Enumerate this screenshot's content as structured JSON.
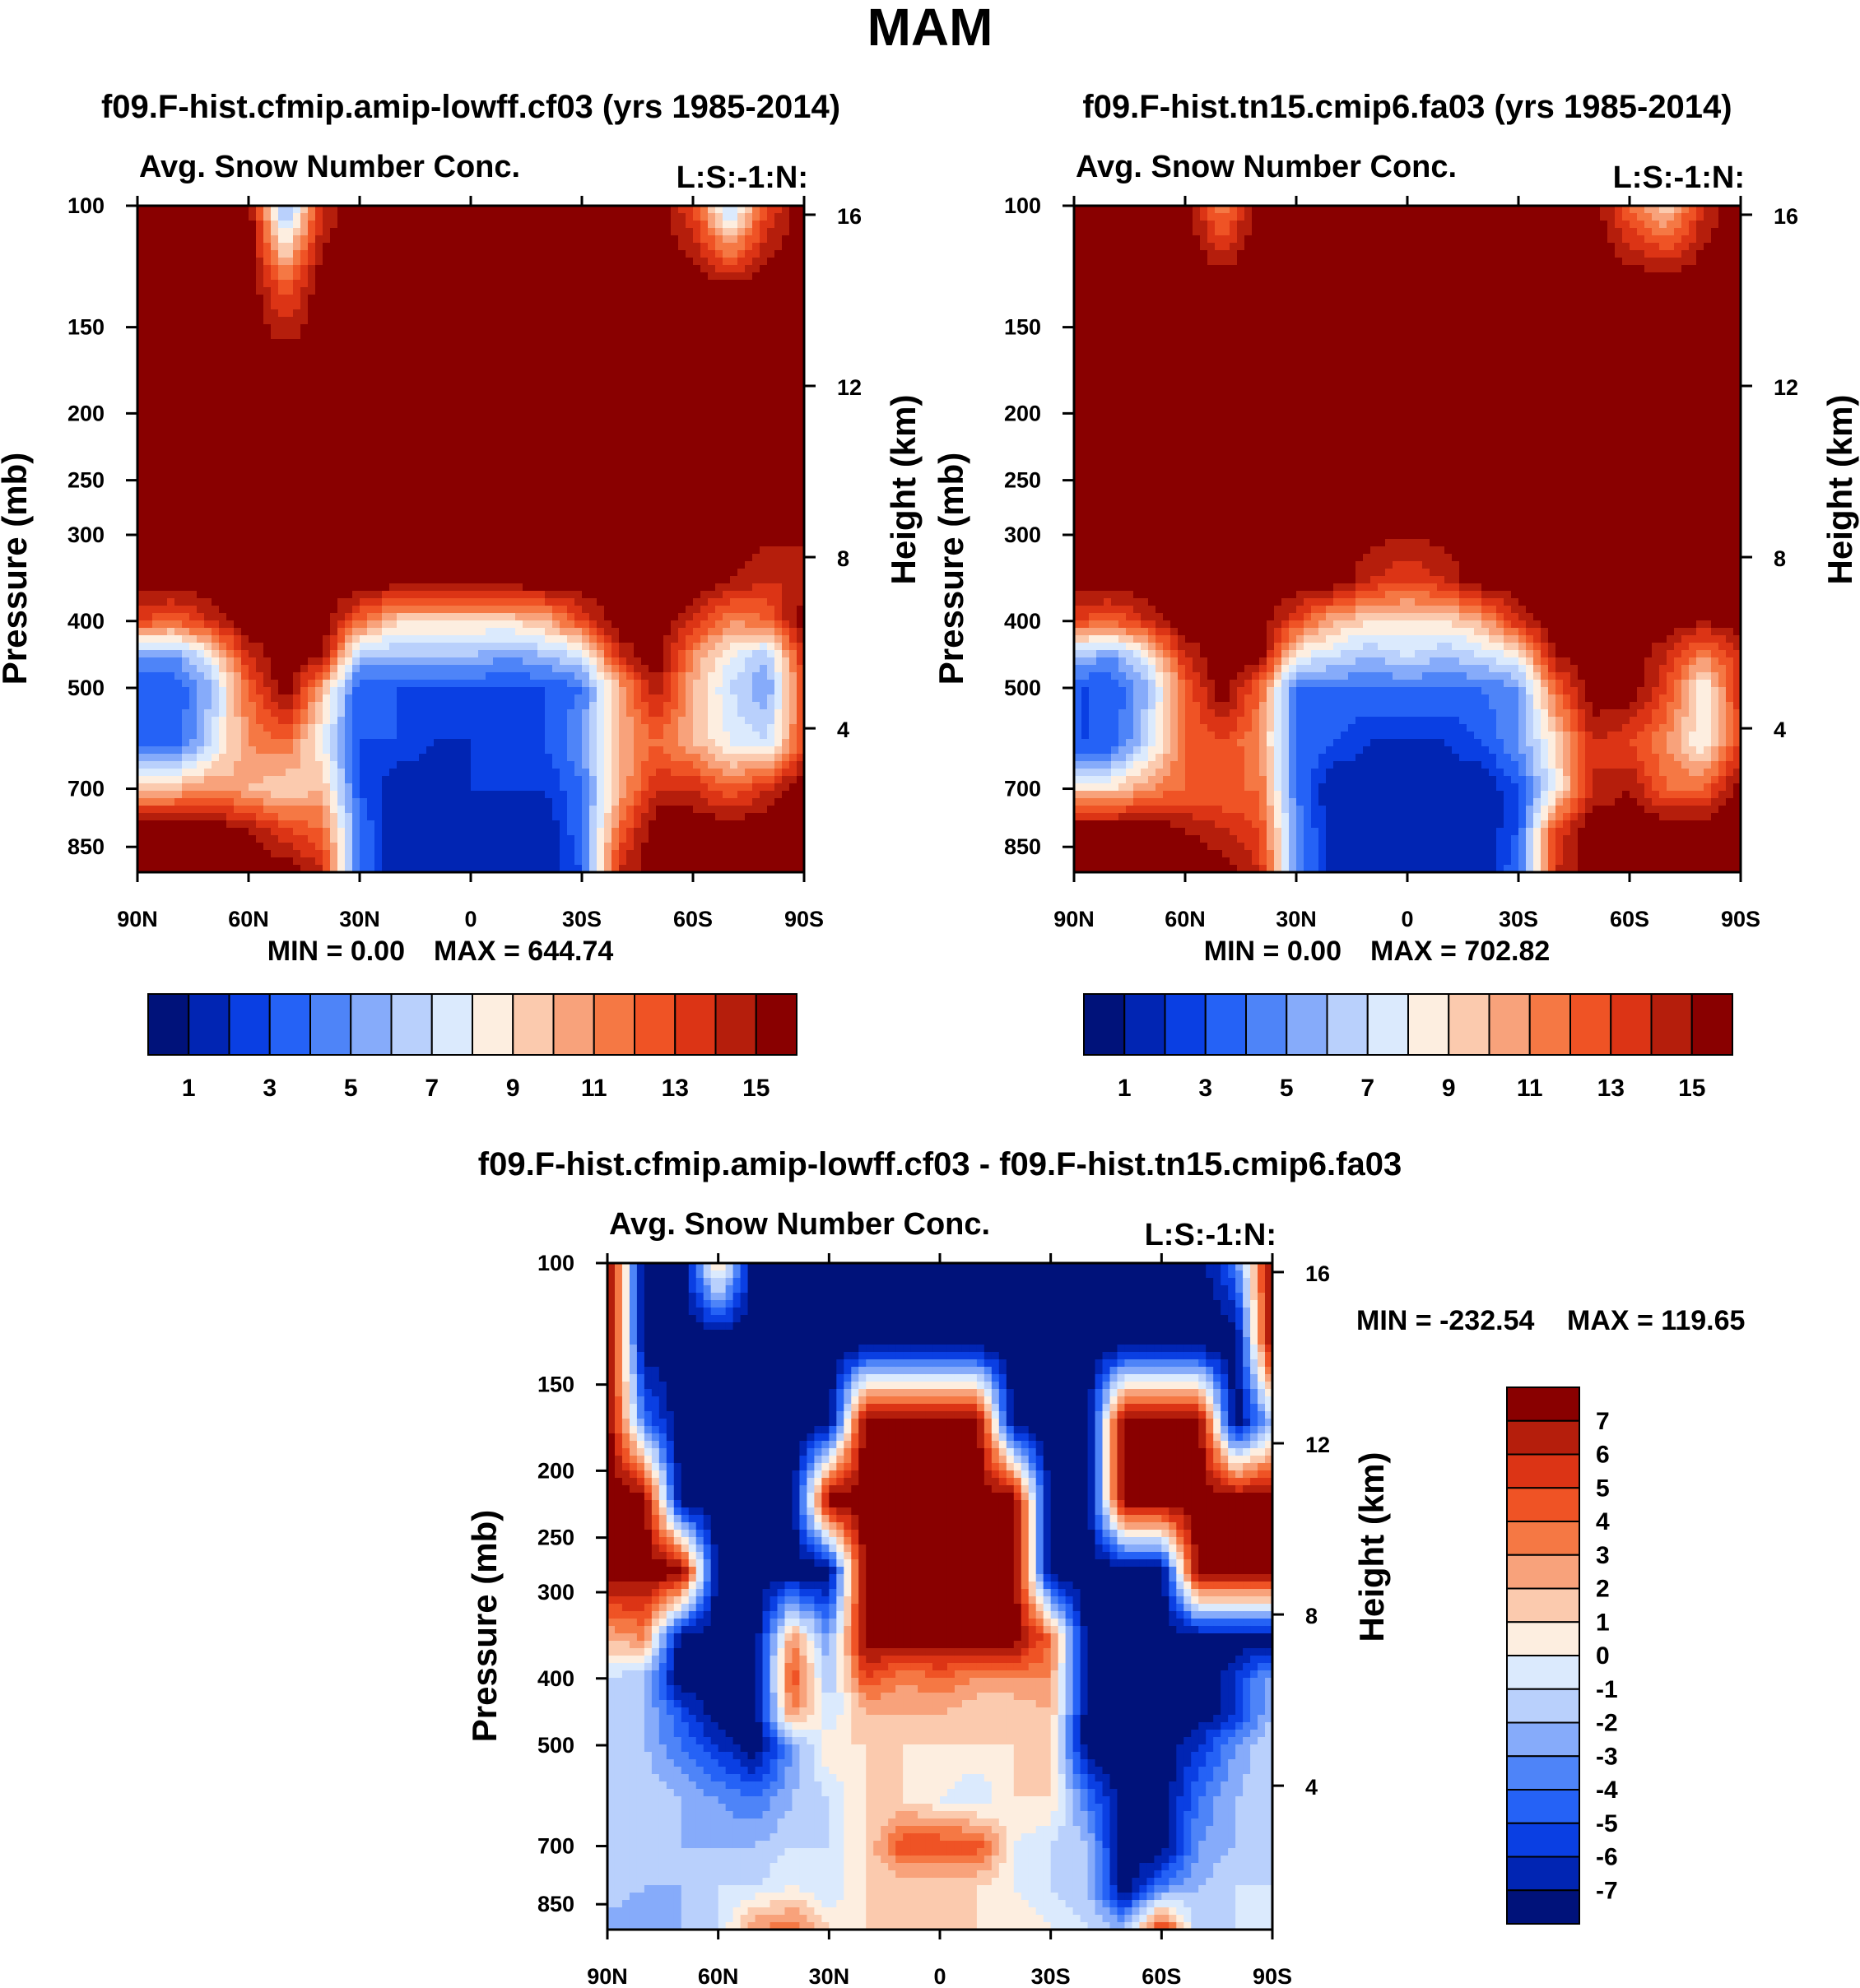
{
  "figure": {
    "title": "MAM"
  },
  "colormaps": {
    "abs": [
      "#00127a",
      "#0125b3",
      "#0a3fe3",
      "#2562f6",
      "#4e84f8",
      "#86abfa",
      "#b9d0fc",
      "#dbeafd",
      "#fdeee0",
      "#fbcaae",
      "#f8a27b",
      "#f57844",
      "#ef5325",
      "#dc3415",
      "#b51e0c",
      "#890000"
    ],
    "diff": [
      "#00127a",
      "#0125b3",
      "#0a3fe3",
      "#2562f6",
      "#4e84f8",
      "#86abfa",
      "#b9d0fc",
      "#dbeafd",
      "#fdeee0",
      "#fbcaae",
      "#f8a27b",
      "#f57844",
      "#ef5325",
      "#dc3415",
      "#b51e0c",
      "#890000"
    ]
  },
  "chart_data": [
    {
      "type": "heatmap",
      "panel_title": "f09.F-hist.cfmip.amip-lowff.cf03 (yrs 1985-2014)",
      "left_header": "Avg. Snow Number Conc.",
      "right_header": "L:S:-1:N:",
      "xlabel": "",
      "ylabel": "Pressure (mb)",
      "y2label": "Height (km)",
      "x_ticks": [
        "90N",
        "60N",
        "30N",
        "0",
        "30S",
        "60S",
        "90S"
      ],
      "y_ticks": [
        "100",
        "150",
        "200",
        "250",
        "300",
        "400",
        "500",
        "700",
        "850"
      ],
      "y_tick_values": [
        100,
        150,
        200,
        250,
        300,
        400,
        500,
        700,
        850
      ],
      "y2_ticks": [
        "16",
        "12",
        "8",
        "4"
      ],
      "y2_tick_values": [
        16,
        12,
        8,
        4
      ],
      "xlim": [
        90,
        -90
      ],
      "ylim_mb": [
        100,
        925
      ],
      "min_text": "MIN =    0.00",
      "max_text": "MAX = 644.74",
      "colorbar_labels": [
        "1",
        "3",
        "5",
        "7",
        "9",
        "11",
        "13",
        "15"
      ],
      "levels": [
        1,
        2,
        3,
        4,
        5,
        6,
        7,
        8,
        9,
        10,
        11,
        12,
        13,
        14,
        15
      ],
      "field": {
        "lat": [
          90,
          80,
          70,
          60,
          50,
          40,
          30,
          20,
          10,
          0,
          -10,
          -20,
          -30,
          -40,
          -50,
          -60,
          -70,
          -80,
          -90
        ],
        "lev": [
          100,
          130,
          170,
          220,
          280,
          350,
          400,
          450,
          500,
          600,
          700,
          800,
          925
        ],
        "values": [
          [
            16,
            16,
            16,
            16,
            5,
            14,
            16,
            16,
            16,
            16,
            16,
            16,
            16,
            16,
            16,
            13,
            6,
            13,
            16
          ],
          [
            16,
            16,
            16,
            16,
            12,
            16,
            16,
            16,
            16,
            16,
            16,
            16,
            16,
            16,
            16,
            16,
            15,
            16,
            16
          ],
          [
            16,
            16,
            16,
            16,
            16,
            16,
            16,
            16,
            16,
            16,
            16,
            16,
            16,
            16,
            16,
            16,
            16,
            16,
            16
          ],
          [
            16,
            16,
            16,
            16,
            16,
            16,
            16,
            16,
            16,
            16,
            16,
            16,
            16,
            16,
            16,
            16,
            16,
            16,
            16
          ],
          [
            16,
            16,
            16,
            16,
            16,
            16,
            16,
            16,
            16,
            16,
            16,
            16,
            16,
            16,
            16,
            16,
            16,
            16,
            16
          ],
          [
            16,
            16,
            16,
            16,
            16,
            16,
            16,
            16,
            16,
            16,
            16,
            16,
            16,
            16,
            16,
            16,
            15,
            14,
            14
          ],
          [
            13,
            12,
            14,
            16,
            16,
            16,
            12,
            9,
            9,
            9,
            9,
            10,
            13,
            16,
            16,
            14,
            11,
            12,
            16
          ],
          [
            5,
            5,
            8,
            14,
            16,
            15,
            6,
            6,
            6,
            6,
            5,
            6,
            7,
            14,
            16,
            11,
            8,
            6,
            14
          ],
          [
            3,
            3,
            6,
            12,
            16,
            10,
            3,
            3,
            3,
            3,
            3,
            3,
            4,
            10,
            15,
            10,
            7,
            5,
            13
          ],
          [
            4,
            3,
            7,
            11,
            12,
            8,
            3,
            3,
            2,
            2,
            2,
            3,
            5,
            10,
            12,
            10,
            8,
            7,
            13
          ],
          [
            10,
            10,
            11,
            10,
            9,
            10,
            3,
            1,
            1,
            2,
            2,
            2,
            4,
            10,
            14,
            14,
            12,
            14,
            16
          ],
          [
            16,
            16,
            16,
            15,
            13,
            12,
            4,
            1,
            1,
            1,
            1,
            1,
            4,
            12,
            16,
            16,
            16,
            16,
            16
          ],
          [
            16,
            16,
            16,
            16,
            16,
            14,
            4,
            1,
            1,
            1,
            1,
            1,
            3,
            14,
            16,
            16,
            16,
            16,
            16
          ]
        ]
      }
    },
    {
      "type": "heatmap",
      "panel_title": "f09.F-hist.tn15.cmip6.fa03 (yrs 1985-2014)",
      "left_header": "Avg. Snow Number Conc.",
      "right_header": "L:S:-1:N:",
      "xlabel": "",
      "ylabel": "Pressure (mb)",
      "y2label": "Height (km)",
      "x_ticks": [
        "90N",
        "60N",
        "30N",
        "0",
        "30S",
        "60S",
        "90S"
      ],
      "y_ticks": [
        "100",
        "150",
        "200",
        "250",
        "300",
        "400",
        "500",
        "700",
        "850"
      ],
      "y_tick_values": [
        100,
        150,
        200,
        250,
        300,
        400,
        500,
        700,
        850
      ],
      "y2_ticks": [
        "16",
        "12",
        "8",
        "4"
      ],
      "y2_tick_values": [
        16,
        12,
        8,
        4
      ],
      "xlim": [
        90,
        -90
      ],
      "ylim_mb": [
        100,
        925
      ],
      "min_text": "MIN =    0.00",
      "max_text": "MAX = 702.82",
      "colorbar_labels": [
        "1",
        "3",
        "5",
        "7",
        "9",
        "11",
        "13",
        "15"
      ],
      "levels": [
        1,
        2,
        3,
        4,
        5,
        6,
        7,
        8,
        9,
        10,
        11,
        12,
        13,
        14,
        15
      ],
      "field": {
        "lat": [
          90,
          80,
          70,
          60,
          50,
          40,
          30,
          20,
          10,
          0,
          -10,
          -20,
          -30,
          -40,
          -50,
          -60,
          -70,
          -80,
          -90
        ],
        "lev": [
          100,
          130,
          170,
          220,
          280,
          350,
          400,
          450,
          500,
          600,
          700,
          800,
          925
        ],
        "values": [
          [
            16,
            16,
            16,
            16,
            11,
            16,
            16,
            16,
            16,
            16,
            16,
            16,
            16,
            16,
            16,
            12,
            9,
            14,
            16
          ],
          [
            16,
            16,
            16,
            16,
            16,
            16,
            16,
            16,
            16,
            16,
            16,
            16,
            16,
            16,
            16,
            16,
            16,
            16,
            16
          ],
          [
            16,
            16,
            16,
            16,
            16,
            16,
            16,
            16,
            16,
            16,
            16,
            16,
            16,
            16,
            16,
            16,
            16,
            16,
            16
          ],
          [
            16,
            16,
            16,
            16,
            16,
            16,
            16,
            16,
            16,
            16,
            16,
            16,
            16,
            16,
            16,
            16,
            16,
            16,
            16
          ],
          [
            16,
            16,
            16,
            16,
            16,
            16,
            16,
            16,
            16,
            16,
            16,
            16,
            16,
            16,
            16,
            16,
            16,
            16,
            16
          ],
          [
            16,
            16,
            16,
            16,
            16,
            16,
            16,
            16,
            14,
            13,
            14,
            16,
            16,
            16,
            16,
            16,
            16,
            16,
            16
          ],
          [
            13,
            12,
            14,
            16,
            16,
            16,
            13,
            10,
            9,
            9,
            9,
            10,
            14,
            16,
            16,
            16,
            16,
            15,
            16
          ],
          [
            6,
            5,
            8,
            14,
            16,
            16,
            8,
            7,
            6,
            7,
            6,
            7,
            8,
            15,
            16,
            16,
            14,
            11,
            14
          ],
          [
            3,
            3,
            6,
            12,
            16,
            12,
            4,
            4,
            4,
            4,
            4,
            4,
            5,
            12,
            16,
            16,
            13,
            8,
            14
          ],
          [
            3,
            3,
            7,
            12,
            13,
            11,
            4,
            3,
            2,
            2,
            2,
            3,
            5,
            9,
            14,
            13,
            11,
            8,
            13
          ],
          [
            9,
            9,
            11,
            12,
            12,
            12,
            4,
            1,
            1,
            1,
            1,
            1,
            3,
            8,
            14,
            15,
            12,
            12,
            16
          ],
          [
            16,
            16,
            16,
            15,
            14,
            13,
            5,
            1,
            1,
            1,
            1,
            1,
            3,
            13,
            16,
            16,
            16,
            16,
            16
          ],
          [
            16,
            16,
            16,
            16,
            16,
            14,
            5,
            1,
            1,
            1,
            1,
            1,
            4,
            14,
            16,
            16,
            16,
            16,
            16
          ]
        ]
      }
    },
    {
      "type": "heatmap",
      "panel_title": "f09.F-hist.cfmip.amip-lowff.cf03 - f09.F-hist.tn15.cmip6.fa03",
      "left_header": "Avg. Snow Number Conc.",
      "right_header": "L:S:-1:N:",
      "xlabel": "",
      "ylabel": "Pressure (mb)",
      "y2label": "Height (km)",
      "x_ticks": [
        "90N",
        "60N",
        "30N",
        "0",
        "30S",
        "60S",
        "90S"
      ],
      "y_ticks": [
        "100",
        "150",
        "200",
        "250",
        "300",
        "400",
        "500",
        "700",
        "850"
      ],
      "y_tick_values": [
        100,
        150,
        200,
        250,
        300,
        400,
        500,
        700,
        850
      ],
      "y2_ticks": [
        "16",
        "12",
        "8",
        "4"
      ],
      "y2_tick_values": [
        16,
        12,
        8,
        4
      ],
      "xlim": [
        90,
        -90
      ],
      "ylim_mb": [
        100,
        925
      ],
      "min_text": "MIN = -232.54",
      "max_text": "MAX = 119.65",
      "colorbar_labels": [
        "7",
        "6",
        "5",
        "4",
        "3",
        "2",
        "1",
        "0",
        "-1",
        "-2",
        "-3",
        "-4",
        "-5",
        "-6",
        "-7"
      ],
      "levels": [
        -7,
        -6,
        -5,
        -4,
        -3,
        -2,
        -1,
        0,
        1,
        2,
        3,
        4,
        5,
        6,
        7
      ],
      "field": {
        "lat": [
          90,
          80,
          70,
          60,
          50,
          40,
          30,
          20,
          10,
          0,
          -10,
          -20,
          -30,
          -40,
          -50,
          -60,
          -70,
          -80,
          -90
        ],
        "lev": [
          100,
          130,
          170,
          220,
          280,
          350,
          400,
          450,
          500,
          600,
          700,
          800,
          925
        ],
        "values": [
          [
            8,
            -8,
            -8,
            2,
            -8,
            -8,
            -8,
            -8,
            -8,
            -8,
            -8,
            -8,
            -8,
            -8,
            -8,
            -8,
            -8,
            -4,
            8
          ],
          [
            8,
            -8,
            -8,
            -8,
            -8,
            -8,
            -8,
            -8,
            -8,
            -8,
            -8,
            -8,
            -8,
            -8,
            -8,
            -8,
            -8,
            -8,
            8
          ],
          [
            8,
            -4,
            -8,
            -8,
            -8,
            -8,
            -8,
            8,
            8,
            8,
            8,
            -8,
            -8,
            -8,
            8,
            8,
            8,
            -8,
            -2
          ],
          [
            8,
            8,
            -8,
            -8,
            -8,
            -8,
            8,
            8,
            8,
            8,
            8,
            8,
            -8,
            -8,
            8,
            8,
            8,
            8,
            8
          ],
          [
            8,
            8,
            8,
            -8,
            -8,
            -8,
            -8,
            8,
            8,
            8,
            8,
            8,
            -8,
            -8,
            -8,
            -8,
            8,
            8,
            8
          ],
          [
            2,
            3,
            -8,
            -8,
            -8,
            3,
            -3,
            8,
            8,
            8,
            8,
            8,
            4,
            -8,
            -8,
            -8,
            -8,
            -8,
            -8
          ],
          [
            -1,
            -2,
            -8,
            -8,
            -8,
            5,
            -2,
            5,
            3,
            4,
            3,
            3,
            3,
            -8,
            -8,
            -8,
            -8,
            -6,
            -2
          ],
          [
            -1,
            -2,
            -5,
            -8,
            -8,
            3,
            -1,
            2,
            2,
            2,
            1,
            1,
            2,
            -8,
            -8,
            -8,
            -8,
            -6,
            -2
          ],
          [
            -1,
            -2,
            -4,
            -6,
            -8,
            -3,
            1,
            1,
            1,
            1,
            1,
            1,
            1,
            -8,
            -8,
            -8,
            -6,
            -3,
            -1
          ],
          [
            -2,
            -1,
            -2,
            -3,
            -4,
            -2,
            -1,
            1,
            1,
            0,
            -1,
            1,
            1,
            -4,
            -8,
            -8,
            -4,
            -2,
            -1
          ],
          [
            -1,
            -1,
            -2,
            -2,
            -2,
            -1,
            -1,
            1,
            5,
            5,
            5,
            0,
            -1,
            -2,
            -8,
            -8,
            -3,
            -2,
            -1
          ],
          [
            -1,
            -2,
            -2,
            -1,
            -1,
            0,
            -1,
            1,
            1,
            1,
            1,
            0,
            -1,
            -2,
            -8,
            -4,
            -2,
            -1,
            -1
          ],
          [
            -3,
            -3,
            -2,
            -1,
            3,
            4,
            1,
            1,
            1,
            1,
            1,
            1,
            0,
            -1,
            -2,
            6,
            -2,
            -1,
            -1
          ]
        ]
      }
    }
  ]
}
